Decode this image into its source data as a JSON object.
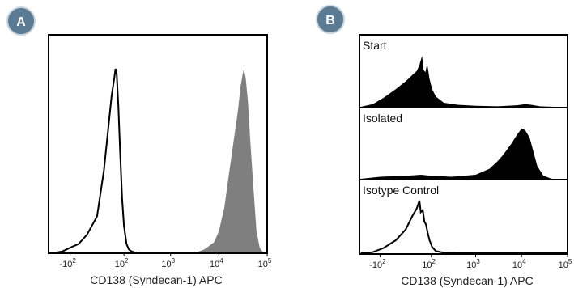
{
  "colors": {
    "badge": "#5b7a94",
    "filled_gray": "#7f7f7f",
    "filled_black": "#000000",
    "frame": "#000000"
  },
  "chart_data": [
    {
      "panel_badge": "A",
      "type": "area",
      "xscale": "biexponential",
      "xlabel": "CD138 (Syndecan-1) APC",
      "ylabel": "",
      "xlim": [
        -300,
        100000
      ],
      "x_ticks": [
        {
          "base": "-10",
          "exp": "2",
          "value": -100
        },
        {
          "base": "10",
          "exp": "2",
          "value": 100
        },
        {
          "base": "10",
          "exp": "3",
          "value": 1000
        },
        {
          "base": "10",
          "exp": "4",
          "value": 10000
        },
        {
          "base": "10",
          "exp": "5",
          "value": 100000
        }
      ],
      "series": [
        {
          "style": "outline",
          "color": "#000000",
          "x": [
            -250,
            -150,
            -100,
            -60,
            -30,
            0,
            20,
            35,
            45,
            55,
            60,
            65,
            72,
            80,
            90,
            100,
            115,
            130,
            150,
            200,
            300,
            1000,
            10000,
            100000
          ],
          "y": [
            0,
            0.01,
            0.03,
            0.05,
            0.1,
            0.2,
            0.45,
            0.7,
            0.85,
            0.95,
            1.0,
            0.97,
            0.8,
            0.55,
            0.3,
            0.15,
            0.05,
            0.02,
            0.01,
            0,
            0,
            0,
            0,
            0
          ]
        },
        {
          "style": "filled",
          "color": "#7f7f7f",
          "x": [
            3000,
            5000,
            8000,
            10000,
            13000,
            16000,
            20000,
            25000,
            28000,
            31000,
            33000,
            36000,
            40000,
            45000,
            52000,
            60000,
            70000,
            85000
          ],
          "y": [
            0,
            0.02,
            0.06,
            0.12,
            0.25,
            0.42,
            0.6,
            0.78,
            0.9,
            0.97,
            1.0,
            0.95,
            0.82,
            0.6,
            0.35,
            0.12,
            0.03,
            0
          ]
        }
      ]
    },
    {
      "panel_badge": "B",
      "type": "area",
      "xscale": "biexponential",
      "xlabel": "CD138 (Syndecan-1) APC",
      "ylabel": "",
      "xlim": [
        -300,
        100000
      ],
      "x_ticks": [
        {
          "base": "-10",
          "exp": "2",
          "value": -100
        },
        {
          "base": "10",
          "exp": "2",
          "value": 100
        },
        {
          "base": "10",
          "exp": "3",
          "value": 1000
        },
        {
          "base": "10",
          "exp": "4",
          "value": 10000
        },
        {
          "base": "10",
          "exp": "5",
          "value": 100000
        }
      ],
      "subpanels": [
        {
          "label": "Start",
          "style": "filled",
          "color": "#000000",
          "x": [
            -280,
            -150,
            -80,
            -30,
            0,
            20,
            35,
            45,
            55,
            62,
            70,
            78,
            90,
            105,
            130,
            200,
            400,
            1000,
            3000,
            8000,
            12000,
            16000,
            25000,
            50000
          ],
          "y": [
            0,
            0.05,
            0.18,
            0.35,
            0.5,
            0.62,
            0.7,
            0.82,
            1.0,
            0.72,
            0.68,
            0.85,
            0.55,
            0.35,
            0.2,
            0.08,
            0.04,
            0.02,
            0.01,
            0.03,
            0.05,
            0.04,
            0.01,
            0
          ]
        },
        {
          "label": "Isolated",
          "style": "filled",
          "color": "#000000",
          "x": [
            -280,
            -100,
            0,
            50,
            100,
            300,
            1000,
            2000,
            3000,
            4000,
            6000,
            8000,
            10000,
            12000,
            15000,
            18000,
            22000,
            30000,
            45000
          ],
          "y": [
            0,
            0.04,
            0.06,
            0.08,
            0.06,
            0.04,
            0.08,
            0.2,
            0.35,
            0.48,
            0.7,
            0.88,
            1.0,
            0.97,
            0.82,
            0.55,
            0.25,
            0.06,
            0
          ]
        },
        {
          "label": "Isotype Control",
          "style": "outline",
          "color": "#000000",
          "x": [
            -280,
            -150,
            -80,
            -30,
            0,
            20,
            35,
            45,
            50,
            58,
            65,
            72,
            80,
            90,
            105,
            130,
            200,
            400,
            100000
          ],
          "y": [
            0,
            0.02,
            0.1,
            0.25,
            0.45,
            0.7,
            0.85,
            1.0,
            0.78,
            0.82,
            0.6,
            0.55,
            0.4,
            0.25,
            0.12,
            0.04,
            0.01,
            0,
            0
          ]
        }
      ]
    }
  ]
}
